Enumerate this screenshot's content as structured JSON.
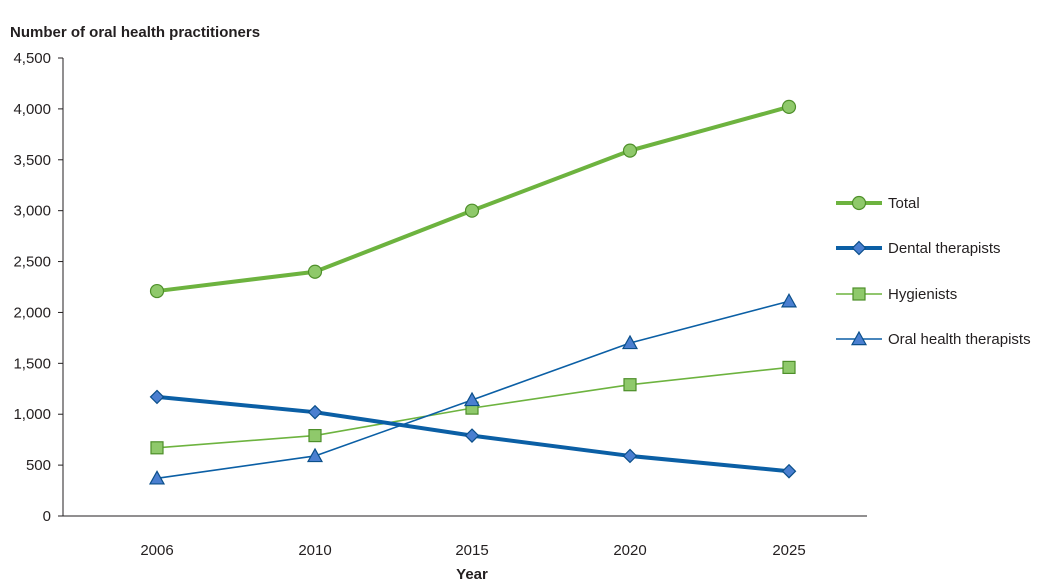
{
  "chart_data": {
    "type": "line",
    "title": "",
    "ylabel": "Number of oral health practitioners",
    "xlabel": "Year",
    "categories": [
      "2006",
      "2010",
      "2015",
      "2020",
      "2025"
    ],
    "ylim": [
      0,
      4500
    ],
    "yticks": [
      0,
      500,
      1000,
      1500,
      2000,
      2500,
      3000,
      3500,
      4000,
      4500
    ],
    "ytick_labels": [
      "0",
      "500",
      "1,000",
      "1,500",
      "2,000",
      "2,500",
      "3,000",
      "3,500",
      "4,000",
      "4,500"
    ],
    "grid": false,
    "legend_position": "right",
    "series": [
      {
        "name": "Total",
        "values": [
          2210,
          2400,
          3000,
          3590,
          4020
        ],
        "color": "#6db33f",
        "marker": "circle",
        "marker_fill": "#8fc96b",
        "width": "thick"
      },
      {
        "name": "Dental therapists",
        "values": [
          1170,
          1020,
          790,
          590,
          440
        ],
        "color": "#0b5fa5",
        "marker": "diamond",
        "marker_fill": "#4a7fd0",
        "width": "thick"
      },
      {
        "name": "Hygienists",
        "values": [
          670,
          790,
          1060,
          1290,
          1460
        ],
        "color": "#6db33f",
        "marker": "square",
        "marker_fill": "#8fc96b",
        "width": "thin"
      },
      {
        "name": "Oral health therapists",
        "values": [
          370,
          590,
          1140,
          1700,
          2110
        ],
        "color": "#0b5fa5",
        "marker": "triangle",
        "marker_fill": "#4a7fd0",
        "width": "thin"
      }
    ]
  }
}
